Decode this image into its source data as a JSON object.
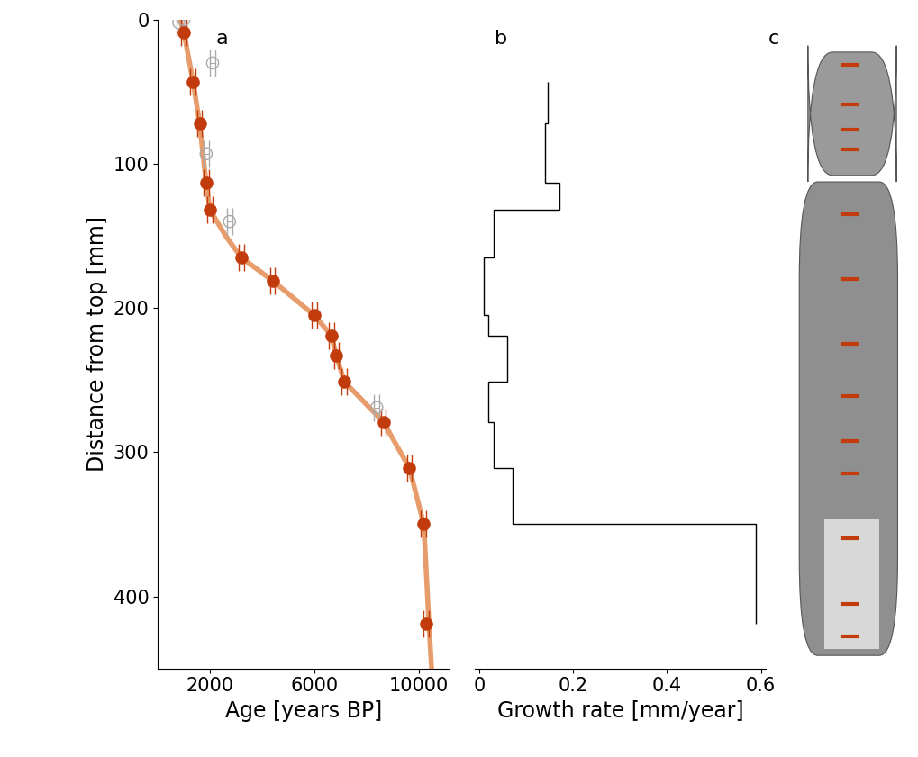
{
  "chart_data": [
    {
      "type": "scatter",
      "title": "a",
      "x_label": "Age [years BP]",
      "y_label": "Distance from top [mm]",
      "xlim": [
        0,
        11200
      ],
      "ylim": [
        450,
        0
      ],
      "xticks": [
        2000,
        6000,
        10000
      ],
      "yticks": [
        0,
        100,
        200,
        300,
        400
      ],
      "series": [
        {
          "type": "line",
          "color": "#e07b39",
          "x": [
            850,
            1000,
            1350,
            1600,
            1850,
            2000,
            2600,
            3200,
            4400,
            6000,
            6650,
            6850,
            7150,
            8650,
            9650,
            10200,
            10400,
            10500
          ],
          "values": [
            0,
            9,
            43,
            72,
            113,
            132,
            150,
            165,
            181,
            205,
            219,
            233,
            251,
            279,
            311,
            350,
            419,
            450
          ]
        },
        {
          "type": "scatter",
          "color": "#aaaaaa",
          "marker": "open",
          "x": [
            800,
            1000,
            2100,
            1850,
            2750,
            8400
          ],
          "values": [
            2,
            0,
            30,
            93,
            140,
            269
          ],
          "age_error": [
            100,
            100,
            100,
            100,
            100,
            100
          ]
        },
        {
          "type": "scatter",
          "color": "#c23b0c",
          "marker": "filled",
          "x": [
            1000,
            1350,
            1600,
            1850,
            2000,
            3200,
            4400,
            6000,
            6650,
            6850,
            7150,
            8650,
            9650,
            10200,
            10300
          ],
          "values": [
            9,
            43,
            72,
            113,
            132,
            165,
            181,
            205,
            219,
            233,
            251,
            279,
            311,
            350,
            419
          ],
          "age_error": [
            100,
            100,
            100,
            100,
            100,
            100,
            100,
            100,
            100,
            100,
            100,
            100,
            100,
            100,
            100
          ]
        }
      ]
    },
    {
      "type": "step",
      "title": "b",
      "x_label": "Growth rate [mm/year]",
      "xlim": [
        -0.01,
        0.61
      ],
      "ylim": [
        450,
        0
      ],
      "xticks": [
        0,
        0.2,
        0.4,
        0.6
      ],
      "tick_labels": "x",
      "color": "#000000",
      "edges": [
        43,
        72,
        113,
        132,
        165,
        205,
        219,
        251,
        279,
        311,
        350,
        419
      ],
      "values": [
        0.145,
        0.14,
        0.17,
        0.03,
        0.01,
        0.02,
        0.06,
        0.02,
        0.03,
        0.07,
        0.59
      ]
    },
    {
      "type": "image",
      "title": "c"
    }
  ]
}
